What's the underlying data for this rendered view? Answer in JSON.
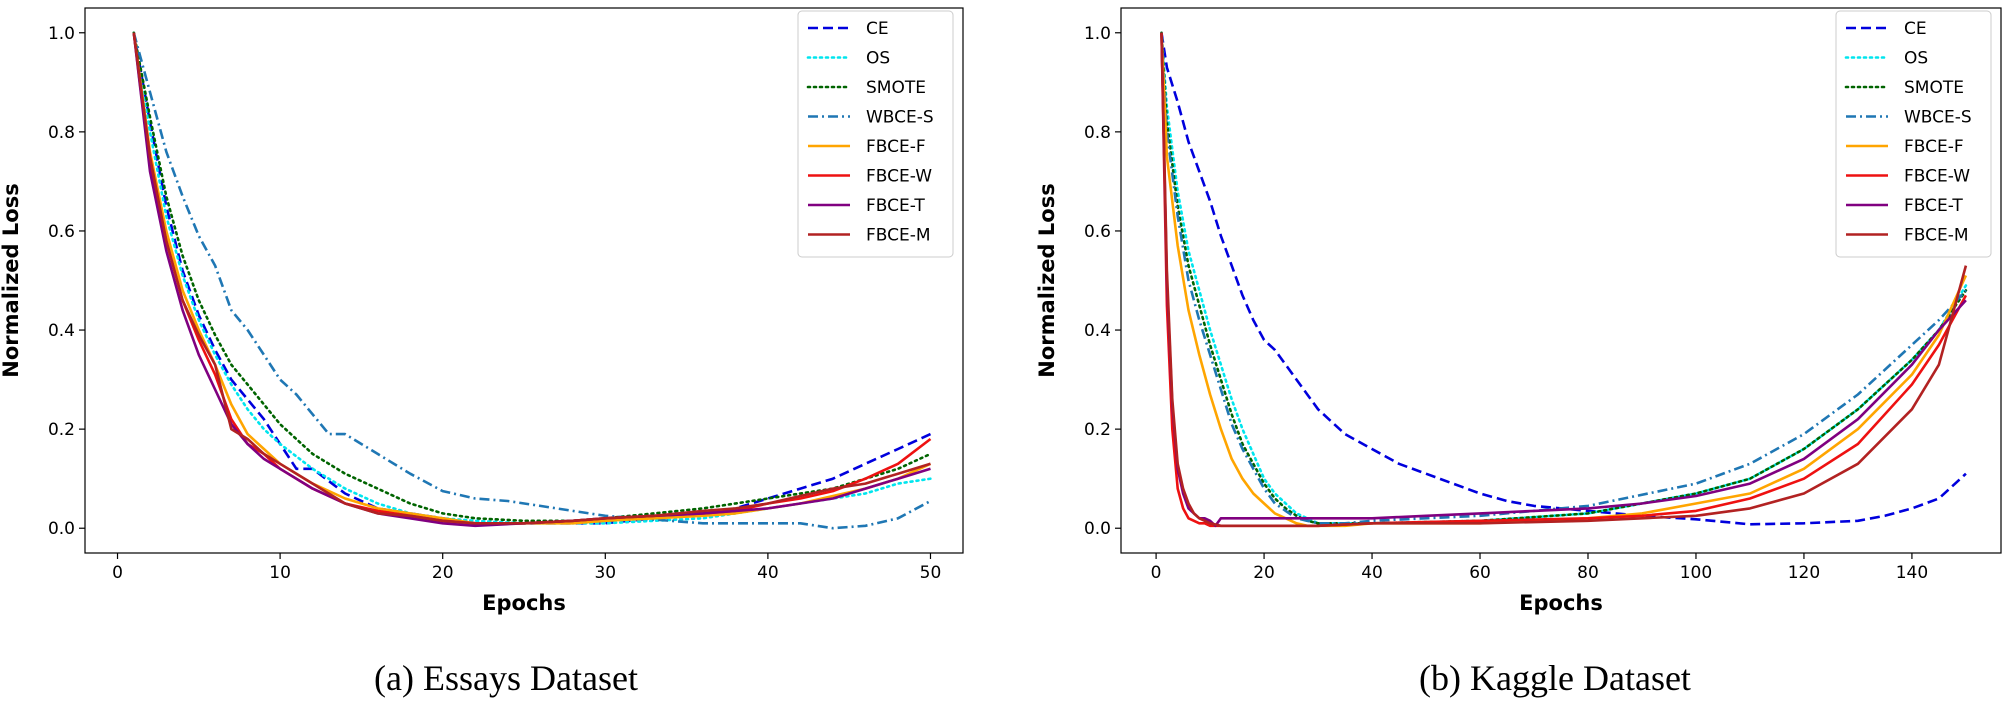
{
  "chart_data": [
    {
      "type": "line",
      "caption": "(a)  Essays Dataset",
      "xlabel": "Epochs",
      "ylabel": "Normalized Loss",
      "xlim": [
        -2,
        52
      ],
      "ylim": [
        -0.05,
        1.05
      ],
      "xticks": [
        0,
        10,
        20,
        30,
        40,
        50
      ],
      "yticks": [
        0.0,
        0.2,
        0.4,
        0.6,
        0.8,
        1.0
      ],
      "xtick_labels": [
        "0",
        "10",
        "20",
        "30",
        "40",
        "50"
      ],
      "ytick_labels": [
        "0.0",
        "0.2",
        "0.4",
        "0.6",
        "0.8",
        "1.0"
      ],
      "legend_position": "top-right",
      "series": [
        {
          "name": "CE",
          "color": "#0000dd",
          "dash": "dashed",
          "x": [
            1,
            2,
            3,
            4,
            5,
            6,
            7,
            8,
            9,
            10,
            11,
            12,
            14,
            16,
            18,
            20,
            22,
            25,
            28,
            30,
            33,
            36,
            38,
            40,
            42,
            44,
            46,
            48,
            50
          ],
          "y": [
            1.0,
            0.82,
            0.65,
            0.52,
            0.43,
            0.36,
            0.3,
            0.26,
            0.22,
            0.17,
            0.12,
            0.12,
            0.07,
            0.04,
            0.03,
            0.02,
            0.01,
            0.01,
            0.01,
            0.01,
            0.02,
            0.03,
            0.04,
            0.06,
            0.08,
            0.1,
            0.13,
            0.16,
            0.19
          ]
        },
        {
          "name": "OS",
          "color": "#00e5ee",
          "dash": "dotted",
          "x": [
            1,
            2,
            3,
            4,
            5,
            6,
            7,
            8,
            9,
            10,
            12,
            14,
            16,
            18,
            20,
            22,
            25,
            28,
            30,
            33,
            36,
            38,
            40,
            42,
            44,
            46,
            48,
            50
          ],
          "y": [
            1.0,
            0.8,
            0.63,
            0.51,
            0.42,
            0.35,
            0.29,
            0.24,
            0.2,
            0.17,
            0.12,
            0.08,
            0.05,
            0.03,
            0.02,
            0.015,
            0.01,
            0.01,
            0.01,
            0.015,
            0.02,
            0.03,
            0.04,
            0.05,
            0.06,
            0.07,
            0.09,
            0.1
          ]
        },
        {
          "name": "SMOTE",
          "color": "#006400",
          "dash": "dotted",
          "x": [
            1,
            2,
            3,
            4,
            5,
            6,
            7,
            8,
            9,
            10,
            12,
            14,
            16,
            18,
            20,
            22,
            25,
            28,
            30,
            33,
            36,
            38,
            40,
            42,
            44,
            46,
            48,
            50
          ],
          "y": [
            1.0,
            0.83,
            0.67,
            0.55,
            0.46,
            0.39,
            0.33,
            0.29,
            0.25,
            0.21,
            0.15,
            0.11,
            0.08,
            0.05,
            0.03,
            0.02,
            0.015,
            0.015,
            0.02,
            0.03,
            0.04,
            0.05,
            0.06,
            0.07,
            0.08,
            0.1,
            0.12,
            0.15
          ]
        },
        {
          "name": "WBCE-S",
          "color": "#1f77b4",
          "dash": "dashdot",
          "x": [
            1,
            2,
            3,
            4,
            5,
            6,
            7,
            8,
            9,
            10,
            11,
            12,
            13,
            14,
            16,
            18,
            20,
            22,
            24,
            26,
            28,
            30,
            32,
            34,
            36,
            38,
            40,
            42,
            44,
            46,
            48,
            50
          ],
          "y": [
            1.0,
            0.88,
            0.76,
            0.67,
            0.59,
            0.53,
            0.44,
            0.4,
            0.35,
            0.3,
            0.27,
            0.23,
            0.19,
            0.19,
            0.15,
            0.11,
            0.075,
            0.06,
            0.055,
            0.045,
            0.035,
            0.025,
            0.02,
            0.015,
            0.01,
            0.01,
            0.01,
            0.01,
            0.0,
            0.005,
            0.02,
            0.055
          ]
        },
        {
          "name": "FBCE-F",
          "color": "#ffa500",
          "dash": "solid",
          "x": [
            1,
            2,
            3,
            4,
            5,
            6,
            7,
            8,
            9,
            10,
            12,
            14,
            16,
            18,
            20,
            22,
            25,
            28,
            30,
            33,
            36,
            38,
            40,
            42,
            44,
            46,
            48,
            50
          ],
          "y": [
            1.0,
            0.76,
            0.6,
            0.48,
            0.4,
            0.33,
            0.25,
            0.19,
            0.16,
            0.13,
            0.09,
            0.06,
            0.04,
            0.03,
            0.02,
            0.01,
            0.01,
            0.01,
            0.015,
            0.02,
            0.025,
            0.03,
            0.04,
            0.05,
            0.065,
            0.08,
            0.1,
            0.13
          ]
        },
        {
          "name": "FBCE-W",
          "color": "#ee1111",
          "dash": "solid",
          "x": [
            1,
            2,
            3,
            4,
            5,
            6,
            7,
            8,
            9,
            10,
            12,
            14,
            16,
            18,
            20,
            22,
            25,
            28,
            30,
            33,
            36,
            38,
            40,
            42,
            44,
            46,
            48,
            50
          ],
          "y": [
            1.0,
            0.73,
            0.58,
            0.46,
            0.38,
            0.31,
            0.22,
            0.17,
            0.15,
            0.12,
            0.08,
            0.05,
            0.035,
            0.025,
            0.015,
            0.01,
            0.01,
            0.015,
            0.02,
            0.025,
            0.03,
            0.035,
            0.05,
            0.06,
            0.075,
            0.1,
            0.13,
            0.18
          ]
        },
        {
          "name": "FBCE-T",
          "color": "#800080",
          "dash": "solid",
          "x": [
            1,
            2,
            3,
            4,
            5,
            6,
            7,
            8,
            9,
            10,
            12,
            14,
            16,
            18,
            20,
            22,
            25,
            28,
            30,
            33,
            36,
            38,
            40,
            42,
            44,
            46,
            48,
            50
          ],
          "y": [
            1.0,
            0.72,
            0.56,
            0.44,
            0.35,
            0.28,
            0.21,
            0.17,
            0.14,
            0.12,
            0.08,
            0.05,
            0.03,
            0.02,
            0.01,
            0.005,
            0.01,
            0.015,
            0.02,
            0.025,
            0.03,
            0.035,
            0.04,
            0.05,
            0.06,
            0.08,
            0.1,
            0.12
          ]
        },
        {
          "name": "FBCE-M",
          "color": "#b22222",
          "dash": "solid",
          "x": [
            1,
            2,
            3,
            4,
            5,
            6,
            7,
            8,
            9,
            10,
            12,
            14,
            16,
            18,
            20,
            22,
            25,
            28,
            30,
            33,
            36,
            38,
            40,
            42,
            44,
            46,
            48,
            50
          ],
          "y": [
            1.0,
            0.75,
            0.58,
            0.46,
            0.39,
            0.33,
            0.2,
            0.18,
            0.15,
            0.13,
            0.09,
            0.05,
            0.03,
            0.025,
            0.015,
            0.01,
            0.01,
            0.015,
            0.02,
            0.025,
            0.035,
            0.04,
            0.05,
            0.065,
            0.08,
            0.09,
            0.11,
            0.13
          ]
        }
      ]
    },
    {
      "type": "line",
      "caption": "(b)  Kaggle Dataset",
      "xlabel": "Epochs",
      "ylabel": "Normalized Loss",
      "xlim": [
        -6.5,
        156.5
      ],
      "ylim": [
        -0.05,
        1.05
      ],
      "xticks": [
        0,
        20,
        40,
        60,
        80,
        100,
        120,
        140
      ],
      "yticks": [
        0.0,
        0.2,
        0.4,
        0.6,
        0.8,
        1.0
      ],
      "xtick_labels": [
        "0",
        "20",
        "40",
        "60",
        "80",
        "100",
        "120",
        "140"
      ],
      "ytick_labels": [
        "0.0",
        "0.2",
        "0.4",
        "0.6",
        "0.8",
        "1.0"
      ],
      "legend_position": "top-right",
      "series": [
        {
          "name": "CE",
          "color": "#0000dd",
          "dash": "dashed",
          "x": [
            1,
            2,
            4,
            6,
            8,
            10,
            12,
            14,
            16,
            18,
            20,
            22,
            24,
            26,
            28,
            30,
            35,
            40,
            45,
            50,
            55,
            60,
            65,
            70,
            80,
            90,
            100,
            110,
            120,
            130,
            135,
            140,
            145,
            150
          ],
          "y": [
            1.0,
            0.93,
            0.86,
            0.78,
            0.72,
            0.66,
            0.59,
            0.53,
            0.47,
            0.42,
            0.38,
            0.36,
            0.33,
            0.3,
            0.27,
            0.24,
            0.19,
            0.16,
            0.13,
            0.11,
            0.09,
            0.07,
            0.055,
            0.045,
            0.035,
            0.025,
            0.018,
            0.008,
            0.01,
            0.015,
            0.025,
            0.04,
            0.06,
            0.11
          ]
        },
        {
          "name": "OS",
          "color": "#00e5ee",
          "dash": "dotted",
          "x": [
            1,
            2,
            4,
            6,
            8,
            10,
            12,
            14,
            16,
            18,
            20,
            22,
            24,
            26,
            28,
            30,
            35,
            40,
            60,
            80,
            100,
            110,
            120,
            130,
            140,
            145,
            150
          ],
          "y": [
            1.0,
            0.85,
            0.68,
            0.56,
            0.48,
            0.4,
            0.33,
            0.26,
            0.2,
            0.15,
            0.1,
            0.07,
            0.05,
            0.03,
            0.02,
            0.01,
            0.01,
            0.01,
            0.015,
            0.03,
            0.07,
            0.1,
            0.16,
            0.24,
            0.34,
            0.4,
            0.49
          ]
        },
        {
          "name": "SMOTE",
          "color": "#006400",
          "dash": "dotted",
          "x": [
            1,
            2,
            4,
            6,
            8,
            10,
            12,
            14,
            16,
            18,
            20,
            22,
            24,
            26,
            28,
            30,
            35,
            40,
            60,
            80,
            100,
            110,
            120,
            130,
            140,
            145,
            150
          ],
          "y": [
            1.0,
            0.82,
            0.65,
            0.53,
            0.45,
            0.37,
            0.3,
            0.23,
            0.17,
            0.13,
            0.09,
            0.06,
            0.04,
            0.025,
            0.015,
            0.01,
            0.01,
            0.01,
            0.015,
            0.03,
            0.07,
            0.1,
            0.16,
            0.24,
            0.34,
            0.4,
            0.48
          ]
        },
        {
          "name": "WBCE-S",
          "color": "#1f77b4",
          "dash": "dashdot",
          "x": [
            1,
            2,
            4,
            6,
            8,
            10,
            12,
            14,
            16,
            18,
            20,
            22,
            24,
            26,
            28,
            30,
            35,
            40,
            60,
            80,
            100,
            110,
            120,
            130,
            140,
            145,
            150
          ],
          "y": [
            1.0,
            0.8,
            0.63,
            0.5,
            0.42,
            0.35,
            0.28,
            0.21,
            0.16,
            0.12,
            0.08,
            0.05,
            0.035,
            0.02,
            0.015,
            0.01,
            0.01,
            0.015,
            0.025,
            0.045,
            0.09,
            0.13,
            0.19,
            0.27,
            0.37,
            0.42,
            0.48
          ]
        },
        {
          "name": "FBCE-F",
          "color": "#ffa500",
          "dash": "solid",
          "x": [
            1,
            2,
            4,
            6,
            8,
            10,
            12,
            14,
            16,
            18,
            20,
            22,
            24,
            26,
            28,
            30,
            35,
            40,
            60,
            80,
            90,
            100,
            110,
            120,
            130,
            140,
            145,
            150
          ],
          "y": [
            1.0,
            0.75,
            0.57,
            0.44,
            0.35,
            0.27,
            0.2,
            0.14,
            0.1,
            0.07,
            0.05,
            0.03,
            0.02,
            0.01,
            0.005,
            0.005,
            0.005,
            0.01,
            0.01,
            0.02,
            0.03,
            0.05,
            0.07,
            0.12,
            0.2,
            0.31,
            0.39,
            0.51
          ]
        },
        {
          "name": "FBCE-W",
          "color": "#ee1111",
          "dash": "solid",
          "x": [
            1,
            2,
            3,
            4,
            5,
            6,
            7,
            8,
            9,
            10,
            12,
            14,
            16,
            18,
            20,
            30,
            40,
            60,
            80,
            90,
            100,
            110,
            120,
            130,
            140,
            145,
            150
          ],
          "y": [
            1.0,
            0.45,
            0.2,
            0.08,
            0.04,
            0.02,
            0.015,
            0.01,
            0.01,
            0.005,
            0.005,
            0.005,
            0.005,
            0.005,
            0.005,
            0.005,
            0.01,
            0.015,
            0.02,
            0.025,
            0.035,
            0.06,
            0.1,
            0.17,
            0.29,
            0.37,
            0.47
          ]
        },
        {
          "name": "FBCE-T",
          "color": "#800080",
          "dash": "solid",
          "x": [
            1,
            2,
            3,
            4,
            5,
            6,
            7,
            8,
            9,
            10,
            11,
            12,
            14,
            16,
            18,
            20,
            30,
            40,
            50,
            60,
            70,
            80,
            90,
            100,
            110,
            120,
            130,
            140,
            145,
            150
          ],
          "y": [
            1.0,
            0.5,
            0.25,
            0.12,
            0.07,
            0.04,
            0.03,
            0.02,
            0.02,
            0.015,
            0.005,
            0.02,
            0.02,
            0.02,
            0.02,
            0.02,
            0.02,
            0.02,
            0.025,
            0.03,
            0.035,
            0.04,
            0.05,
            0.065,
            0.09,
            0.14,
            0.22,
            0.33,
            0.4,
            0.46
          ]
        },
        {
          "name": "FBCE-M",
          "color": "#b22222",
          "dash": "solid",
          "x": [
            1,
            2,
            3,
            4,
            5,
            6,
            7,
            8,
            9,
            10,
            12,
            14,
            16,
            18,
            20,
            30,
            40,
            60,
            80,
            90,
            100,
            110,
            120,
            130,
            140,
            145,
            150
          ],
          "y": [
            1.0,
            0.52,
            0.26,
            0.13,
            0.08,
            0.05,
            0.03,
            0.02,
            0.015,
            0.01,
            0.005,
            0.005,
            0.005,
            0.005,
            0.005,
            0.005,
            0.01,
            0.01,
            0.015,
            0.02,
            0.025,
            0.04,
            0.07,
            0.13,
            0.24,
            0.33,
            0.53
          ]
        }
      ]
    }
  ]
}
